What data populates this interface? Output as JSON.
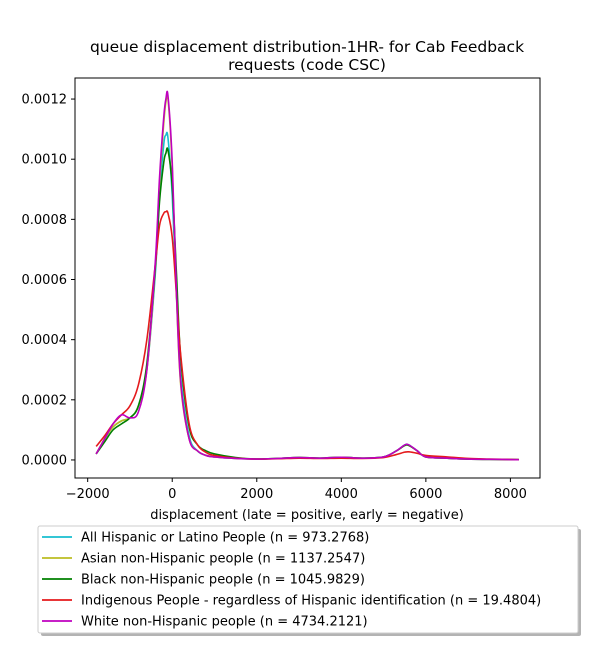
{
  "chart_data": {
    "type": "line",
    "title": "queue displacement distribution-1HR-  for Cab Feedback requests (code CSC)",
    "title_lines": [
      "queue displacement distribution-1HR-  for Cab Feedback",
      "requests (code CSC)"
    ],
    "xlabel": "displacement (late = positive, early = negative)",
    "ylabel": "",
    "xlim": [
      -2300,
      8700
    ],
    "ylim": [
      -6e-05,
      0.00127
    ],
    "xticks": [
      -2000,
      0,
      2000,
      4000,
      6000,
      8000
    ],
    "xtick_labels": [
      "−2000",
      "0",
      "2000",
      "4000",
      "6000",
      "8000"
    ],
    "yticks": [
      0.0,
      0.0002,
      0.0004,
      0.0006,
      0.0008,
      0.001,
      0.0012
    ],
    "ytick_labels": [
      "0.0000",
      "0.0002",
      "0.0004",
      "0.0006",
      "0.0008",
      "0.0010",
      "0.0012"
    ],
    "grid": false,
    "legend_position": "below",
    "x": [
      -1800,
      -1600,
      -1400,
      -1200,
      -1000,
      -800,
      -600,
      -400,
      -300,
      -200,
      -150,
      -100,
      0,
      100,
      200,
      400,
      600,
      800,
      1000,
      1500,
      2000,
      2500,
      3000,
      3500,
      4000,
      4500,
      5000,
      5300,
      5500,
      5600,
      5800,
      6000,
      6500,
      7000,
      7500,
      8200
    ],
    "series": [
      {
        "name": "All Hispanic or Latino People (n = 973.2768)",
        "color": "#17becf",
        "values": [
          2e-05,
          7e-05,
          0.00011,
          0.00013,
          0.00014,
          0.00018,
          0.0003,
          0.00062,
          0.00088,
          0.00105,
          0.00108,
          0.00107,
          0.00088,
          0.00055,
          0.00028,
          8e-05,
          3e-05,
          1.5e-05,
          1e-05,
          5e-06,
          3e-06,
          5e-06,
          8e-06,
          6e-06,
          9e-06,
          6e-06,
          1e-05,
          3e-05,
          5e-05,
          5e-05,
          3e-05,
          1e-05,
          6e-06,
          3e-06,
          2e-06,
          1e-06
        ]
      },
      {
        "name": "Asian non-Hispanic people (n = 1137.2547)",
        "color": "#bcbd22",
        "values": [
          2e-05,
          7e-05,
          0.00011,
          0.00013,
          0.00014,
          0.00018,
          0.0003,
          0.00064,
          0.00092,
          0.00112,
          0.00119,
          0.0012,
          0.00097,
          0.00055,
          0.00025,
          7e-05,
          3e-05,
          1.5e-05,
          1e-05,
          5e-06,
          3e-06,
          5e-06,
          8e-06,
          6e-06,
          9e-06,
          6e-06,
          1e-05,
          3e-05,
          4.8e-05,
          4.8e-05,
          3e-05,
          1e-05,
          6e-06,
          3e-06,
          2e-06,
          1e-06
        ]
      },
      {
        "name": "Black non-Hispanic people (n = 1045.9829)",
        "color": "#008000",
        "values": [
          2e-05,
          6e-05,
          0.0001,
          0.00012,
          0.00014,
          0.00018,
          0.00032,
          0.00064,
          0.00086,
          0.00099,
          0.00102,
          0.00103,
          0.00091,
          0.00062,
          0.00034,
          0.00011,
          5e-05,
          3e-05,
          2e-05,
          8e-06,
          3e-06,
          5e-06,
          8e-06,
          6e-06,
          9e-06,
          6e-06,
          1e-05,
          3e-05,
          4.8e-05,
          4.8e-05,
          3e-05,
          1e-05,
          6e-06,
          3e-06,
          2e-06,
          1e-06
        ]
      },
      {
        "name": "Indigenous People - regardless of Hispanic identification (n = 19.4804)",
        "color": "#e41a1c",
        "values": [
          4.5e-05,
          8e-05,
          0.00012,
          0.00015,
          0.00018,
          0.00025,
          0.0004,
          0.00065,
          0.00078,
          0.00082,
          0.000825,
          0.00082,
          0.00074,
          0.00055,
          0.00035,
          0.00012,
          5e-05,
          2.5e-05,
          1.5e-05,
          6e-06,
          3e-06,
          4e-06,
          6e-06,
          5e-06,
          6e-06,
          5e-06,
          8e-06,
          1.8e-05,
          2.6e-05,
          2.7e-05,
          2.2e-05,
          1.5e-05,
          1e-05,
          5e-06,
          3e-06,
          1e-06
        ]
      },
      {
        "name": "White non-Hispanic people (n = 4734.2121)",
        "color": "#bf00bf",
        "values": [
          2e-05,
          7e-05,
          0.00012,
          0.00015,
          0.00014,
          0.00016,
          0.0003,
          0.00066,
          0.00094,
          0.00114,
          0.0012,
          0.00121,
          0.00099,
          0.00056,
          0.00026,
          7e-05,
          3e-05,
          1.5e-05,
          1e-05,
          5e-06,
          3e-06,
          5e-06,
          8e-06,
          6e-06,
          9e-06,
          6e-06,
          1e-05,
          3e-05,
          5e-05,
          5e-05,
          3e-05,
          1e-05,
          6e-06,
          3e-06,
          2e-06,
          1e-06
        ]
      }
    ]
  }
}
